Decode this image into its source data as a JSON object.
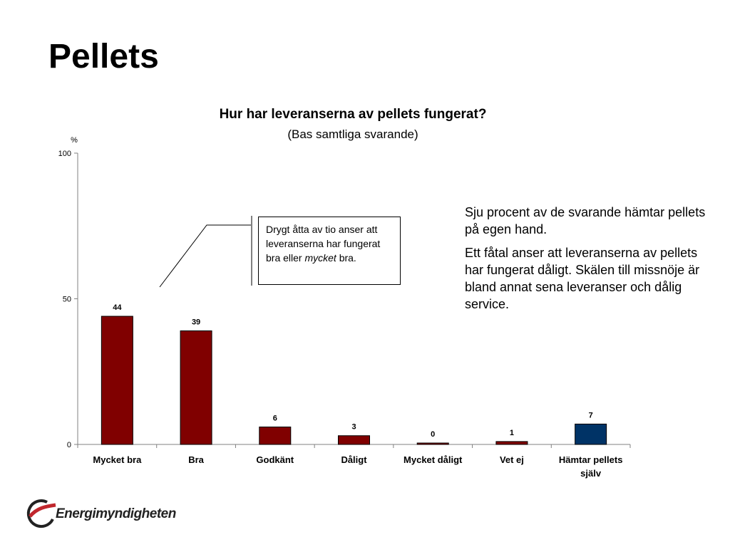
{
  "slide": {
    "title": "Pellets"
  },
  "chart_data": {
    "type": "bar",
    "title": "Hur har leveranserna av pellets fungerat?",
    "subtitle": "(Bas samtliga svarande)",
    "ylabel": "%",
    "ylim": [
      0,
      100
    ],
    "yticks": [
      0,
      50,
      100
    ],
    "grid": false,
    "categories": [
      "Mycket bra",
      "Bra",
      "Godkänt",
      "Dåligt",
      "Mycket dåligt",
      "Vet ej",
      "Hämtar pellets själv"
    ],
    "values": [
      44,
      39,
      6,
      3,
      0,
      1,
      7
    ],
    "value_labels": [
      "44",
      "39",
      "6",
      "3",
      "0",
      "1",
      "7"
    ],
    "bar_colors": [
      "#800000",
      "#800000",
      "#800000",
      "#800000",
      "#800000",
      "#800000",
      "#003366"
    ]
  },
  "callout": {
    "text_before": "Drygt åtta av tio anser att leveranserna har fungerat bra eller ",
    "emphasis": "mycket",
    "text_after": " bra."
  },
  "side_text": {
    "paragraph1": "Sju procent av de svarande hämtar pellets på egen hand.",
    "paragraph2": "Ett fåtal anser att leveranserna av pellets har fungerat dåligt. Skälen till missnöje är bland annat sena leveranser och dålig service."
  },
  "logo": {
    "name": "Energimyndigheten",
    "icon": "energimyndigheten-logo-icon",
    "color": "#c0272d"
  }
}
